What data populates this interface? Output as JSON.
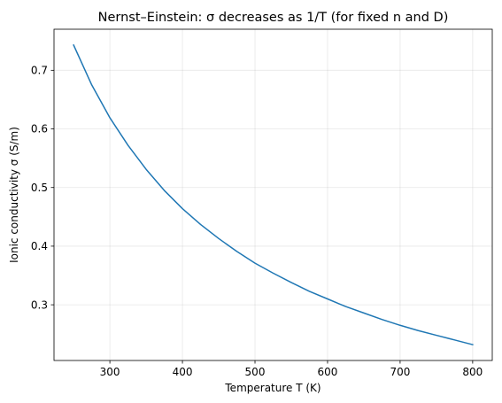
{
  "chart_data": {
    "type": "line",
    "title": "Nernst–Einstein: σ decreases as 1/T (for fixed n and D)",
    "xlabel": "Temperature T (K)",
    "ylabel": "Ionic conductivity σ (S/m)",
    "xlim": [
      223,
      827
    ],
    "ylim": [
      0.205,
      0.77
    ],
    "xticks": [
      300,
      400,
      500,
      600,
      700,
      800
    ],
    "yticks": [
      0.3,
      0.4,
      0.5,
      0.6,
      0.7
    ],
    "xtick_labels": [
      "300",
      "400",
      "500",
      "600",
      "700",
      "800"
    ],
    "ytick_labels": [
      "0.3",
      "0.4",
      "0.5",
      "0.6",
      "0.7"
    ],
    "grid": true,
    "series": [
      {
        "color": "#1f77b4",
        "x": [
          250,
          275,
          300,
          325,
          350,
          375,
          400,
          425,
          450,
          475,
          500,
          525,
          550,
          575,
          600,
          625,
          650,
          675,
          700,
          725,
          750,
          775,
          800
        ],
        "y": [
          0.743,
          0.675,
          0.619,
          0.572,
          0.531,
          0.495,
          0.464,
          0.437,
          0.413,
          0.391,
          0.371,
          0.354,
          0.338,
          0.323,
          0.31,
          0.297,
          0.286,
          0.275,
          0.265,
          0.256,
          0.248,
          0.24,
          0.232
        ]
      }
    ]
  }
}
